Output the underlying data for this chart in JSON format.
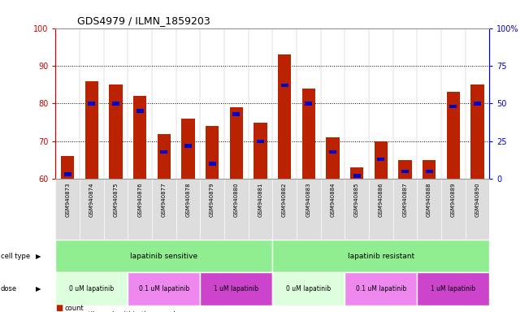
{
  "title": "GDS4979 / ILMN_1859203",
  "samples": [
    "GSM940873",
    "GSM940874",
    "GSM940875",
    "GSM940876",
    "GSM940877",
    "GSM940878",
    "GSM940879",
    "GSM940880",
    "GSM940881",
    "GSM940882",
    "GSM940883",
    "GSM940884",
    "GSM940885",
    "GSM940886",
    "GSM940887",
    "GSM940888",
    "GSM940889",
    "GSM940890"
  ],
  "count_values": [
    66,
    86,
    85,
    82,
    72,
    76,
    74,
    79,
    75,
    93,
    84,
    71,
    63,
    70,
    65,
    65,
    83,
    85
  ],
  "percentile_values": [
    3,
    50,
    50,
    45,
    18,
    22,
    10,
    43,
    25,
    62,
    50,
    18,
    2,
    13,
    5,
    5,
    48,
    50
  ],
  "ylim_left": [
    60,
    100
  ],
  "ylim_right": [
    0,
    100
  ],
  "yticks_left": [
    60,
    70,
    80,
    90,
    100
  ],
  "yticks_right": [
    0,
    25,
    50,
    75,
    100
  ],
  "bar_color": "#bb2200",
  "percentile_color": "#0000cc",
  "bar_width": 0.55,
  "cell_type_labels": [
    "lapatinib sensitive",
    "lapatinib resistant"
  ],
  "cell_type_ranges": [
    [
      0,
      9
    ],
    [
      9,
      18
    ]
  ],
  "cell_type_color": "#90ee90",
  "dose_labels": [
    "0 uM lapatinib",
    "0.1 uM lapatinib",
    "1 uM lapatinib",
    "0 uM lapatinib",
    "0.1 uM lapatinib",
    "1 uM lapatinib"
  ],
  "dose_ranges": [
    [
      0,
      3
    ],
    [
      3,
      6
    ],
    [
      6,
      9
    ],
    [
      9,
      12
    ],
    [
      12,
      15
    ],
    [
      15,
      18
    ]
  ],
  "dose_colors": [
    "#ddffdd",
    "#ee88ee",
    "#cc44cc",
    "#ddffdd",
    "#ee88ee",
    "#cc44cc"
  ],
  "legend_count_color": "#bb2200",
  "legend_pct_color": "#0000cc",
  "grid_color": "#000000",
  "axis_left_color": "#cc0000",
  "axis_right_color": "#0000cc",
  "bg_color": "#ffffff",
  "bar_area_bg": "#ffffff"
}
